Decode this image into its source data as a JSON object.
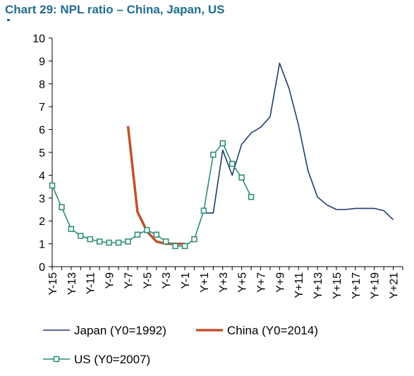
{
  "title": "Chart 29: NPL ratio – China, Japan, US",
  "chart_data": {
    "type": "line",
    "title": "Chart 29: NPL ratio – China, Japan, US",
    "xlabel": "",
    "ylabel": "",
    "ylim": [
      0,
      10
    ],
    "yticks": [
      0,
      1,
      2,
      3,
      4,
      5,
      6,
      7,
      8,
      9,
      10
    ],
    "xlim": [
      -15,
      22
    ],
    "xtick_values": [
      -15,
      -13,
      -11,
      -9,
      -7,
      -5,
      -3,
      -1,
      1,
      3,
      5,
      7,
      9,
      11,
      13,
      15,
      17,
      19,
      21
    ],
    "xtick_labels": [
      "Y-15",
      "Y-13",
      "Y-11",
      "Y-9",
      "Y-7",
      "Y-5",
      "Y-3",
      "Y-1",
      "Y+1",
      "Y+3",
      "Y+5",
      "Y+7",
      "Y+9",
      "Y+11",
      "Y+13",
      "Y+15",
      "Y+17",
      "Y+19",
      "Y+21"
    ],
    "grid": false,
    "legend_position": "bottom",
    "series": [
      {
        "name": "Japan (Y0=1992)",
        "color": "#1f3d6b",
        "marker": "none",
        "x": [
          1,
          2,
          3,
          4,
          5,
          6,
          7,
          8,
          9,
          10,
          11,
          12,
          13,
          14,
          15,
          16,
          17,
          18,
          19,
          20,
          21
        ],
        "y": [
          2.35,
          2.35,
          5.1,
          4.0,
          5.35,
          5.85,
          6.1,
          6.55,
          8.9,
          7.8,
          6.2,
          4.2,
          3.05,
          2.7,
          2.5,
          2.5,
          2.55,
          2.55,
          2.55,
          2.45,
          2.05
        ]
      },
      {
        "name": "China (Y0=2014)",
        "color": "#c0522b",
        "marker": "none",
        "x": [
          -7,
          -6,
          -5,
          -4,
          -3,
          -2,
          -1
        ],
        "y": [
          6.15,
          2.4,
          1.55,
          1.1,
          1.0,
          1.0,
          1.0
        ]
      },
      {
        "name": "US (Y0=2007)",
        "color": "#2e8b7a",
        "marker": "square",
        "x": [
          -15,
          -14,
          -13,
          -12,
          -11,
          -10,
          -9,
          -8,
          -7,
          -6,
          -5,
          -4,
          -3,
          -2,
          -1,
          0,
          1,
          2,
          3,
          4,
          5,
          6
        ],
        "y": [
          3.55,
          2.6,
          1.65,
          1.35,
          1.2,
          1.1,
          1.05,
          1.05,
          1.1,
          1.4,
          1.6,
          1.4,
          1.1,
          0.9,
          0.9,
          1.2,
          2.45,
          4.9,
          5.4,
          4.5,
          3.9,
          3.05
        ]
      }
    ]
  }
}
